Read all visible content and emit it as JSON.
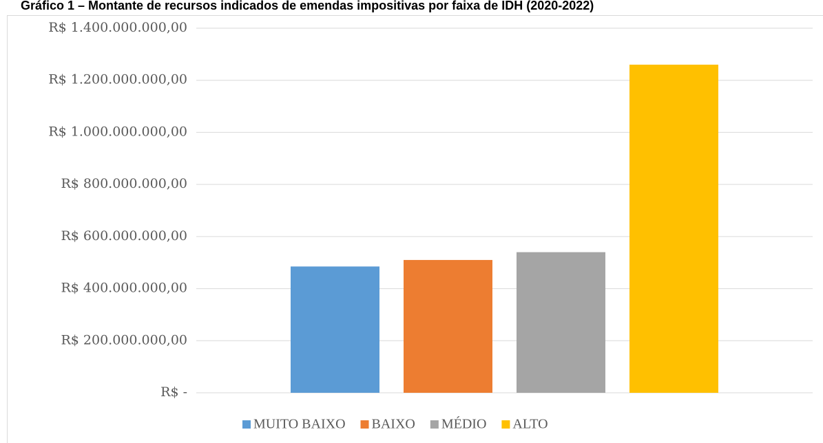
{
  "chart_data": {
    "type": "bar",
    "title": "Gráfico 1 – Montante de recursos indicados de emendas impositivas por faixa de IDH (2020-2022)",
    "categories": [
      null
    ],
    "series": [
      {
        "name": "MUITO BAIXO",
        "color": "#5b9bd5",
        "values": [
          485000000
        ]
      },
      {
        "name": "BAIXO",
        "color": "#ed7d31",
        "values": [
          510000000
        ]
      },
      {
        "name": "MÉDIO",
        "color": "#a5a5a5",
        "values": [
          540000000
        ]
      },
      {
        "name": "ALTO",
        "color": "#ffc000",
        "values": [
          1260000000
        ]
      }
    ],
    "ylim": [
      0,
      1400000000
    ],
    "yticks": [
      {
        "value": 0,
        "label": "R$ -"
      },
      {
        "value": 200000000,
        "label": "R$ 200.000.000,00"
      },
      {
        "value": 400000000,
        "label": "R$ 400.000.000,00"
      },
      {
        "value": 600000000,
        "label": "R$ 600.000.000,00"
      },
      {
        "value": 800000000,
        "label": "R$ 800.000.000,00"
      },
      {
        "value": 1000000000,
        "label": "R$ 1.000.000.000,00"
      },
      {
        "value": 1200000000,
        "label": "R$ 1.200.000.000,00"
      },
      {
        "value": 1400000000,
        "label": "R$ 1.400.000.000,00"
      }
    ],
    "grid": true,
    "legend": "bottom"
  }
}
